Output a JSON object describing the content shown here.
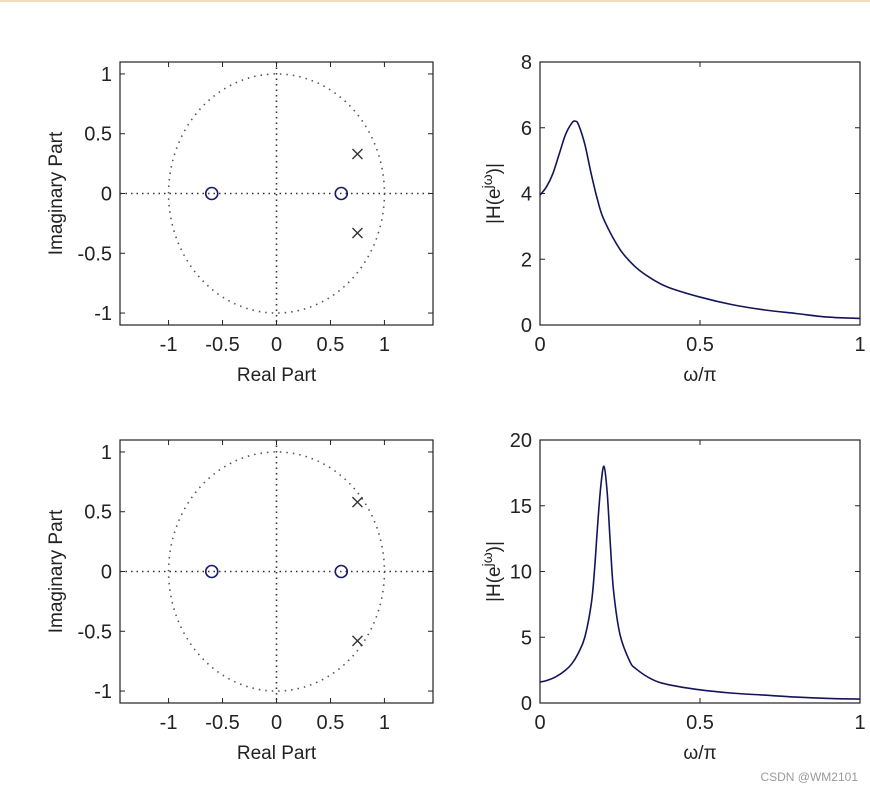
{
  "chart_data": [
    {
      "type": "scatter",
      "subtype": "pole-zero",
      "xlabel": "Real Part",
      "ylabel": "Imaginary Part",
      "xlim": [
        -1.45,
        1.45
      ],
      "ylim": [
        -1.1,
        1.1
      ],
      "xticks": [
        -1,
        -0.5,
        0,
        0.5,
        1
      ],
      "yticks": [
        -1,
        -0.5,
        0,
        0.5,
        1
      ],
      "unit_circle": true,
      "zeros": [
        {
          "x": -0.6,
          "y": 0
        },
        {
          "x": 0.6,
          "y": 0
        }
      ],
      "poles": [
        {
          "x": 0.75,
          "y": 0.33
        },
        {
          "x": 0.75,
          "y": -0.33
        }
      ]
    },
    {
      "type": "line",
      "xlabel": "ω/π",
      "ylabel": "|H(e^jω)|",
      "ylabel_base": "|H(e",
      "ylabel_sup": "jω",
      "ylabel_tail": ")|",
      "xlim": [
        0,
        1
      ],
      "ylim": [
        0,
        8
      ],
      "xticks": [
        0,
        0.5,
        1
      ],
      "yticks": [
        0,
        2,
        4,
        6,
        8
      ],
      "x": [
        0,
        0.02,
        0.04,
        0.06,
        0.08,
        0.1,
        0.11,
        0.12,
        0.14,
        0.16,
        0.18,
        0.2,
        0.25,
        0.3,
        0.35,
        0.4,
        0.5,
        0.6,
        0.7,
        0.8,
        0.9,
        1.0
      ],
      "y": [
        3.95,
        4.2,
        4.6,
        5.2,
        5.8,
        6.15,
        6.2,
        6.1,
        5.5,
        4.6,
        3.8,
        3.2,
        2.3,
        1.75,
        1.4,
        1.15,
        0.85,
        0.62,
        0.46,
        0.35,
        0.24,
        0.2
      ]
    },
    {
      "type": "scatter",
      "subtype": "pole-zero",
      "xlabel": "Real Part",
      "ylabel": "Imaginary Part",
      "xlim": [
        -1.45,
        1.45
      ],
      "ylim": [
        -1.1,
        1.1
      ],
      "xticks": [
        -1,
        -0.5,
        0,
        0.5,
        1
      ],
      "yticks": [
        -1,
        -0.5,
        0,
        0.5,
        1
      ],
      "unit_circle": true,
      "zeros": [
        {
          "x": -0.6,
          "y": 0
        },
        {
          "x": 0.6,
          "y": 0
        }
      ],
      "poles": [
        {
          "x": 0.75,
          "y": 0.58
        },
        {
          "x": 0.75,
          "y": -0.58
        }
      ]
    },
    {
      "type": "line",
      "xlabel": "ω/π",
      "ylabel": "|H(e^jω)|",
      "ylabel_base": "|H(e",
      "ylabel_sup": "jω",
      "ylabel_tail": ")|",
      "xlim": [
        0,
        1
      ],
      "ylim": [
        0,
        20
      ],
      "xticks": [
        0,
        0.5,
        1
      ],
      "yticks": [
        0,
        5,
        10,
        15,
        20
      ],
      "x": [
        0,
        0.02,
        0.05,
        0.08,
        0.1,
        0.12,
        0.14,
        0.16,
        0.17,
        0.18,
        0.19,
        0.2,
        0.21,
        0.22,
        0.23,
        0.25,
        0.28,
        0.3,
        0.35,
        0.4,
        0.5,
        0.6,
        0.7,
        0.8,
        0.9,
        1.0
      ],
      "y": [
        1.6,
        1.7,
        2.0,
        2.5,
        3.0,
        3.8,
        5.0,
        7.5,
        10.0,
        13.5,
        16.5,
        18.0,
        16.0,
        12.0,
        8.5,
        5.2,
        3.2,
        2.6,
        1.8,
        1.4,
        1.0,
        0.75,
        0.6,
        0.45,
        0.35,
        0.3
      ]
    }
  ],
  "watermark": "CSDN @WM2101"
}
